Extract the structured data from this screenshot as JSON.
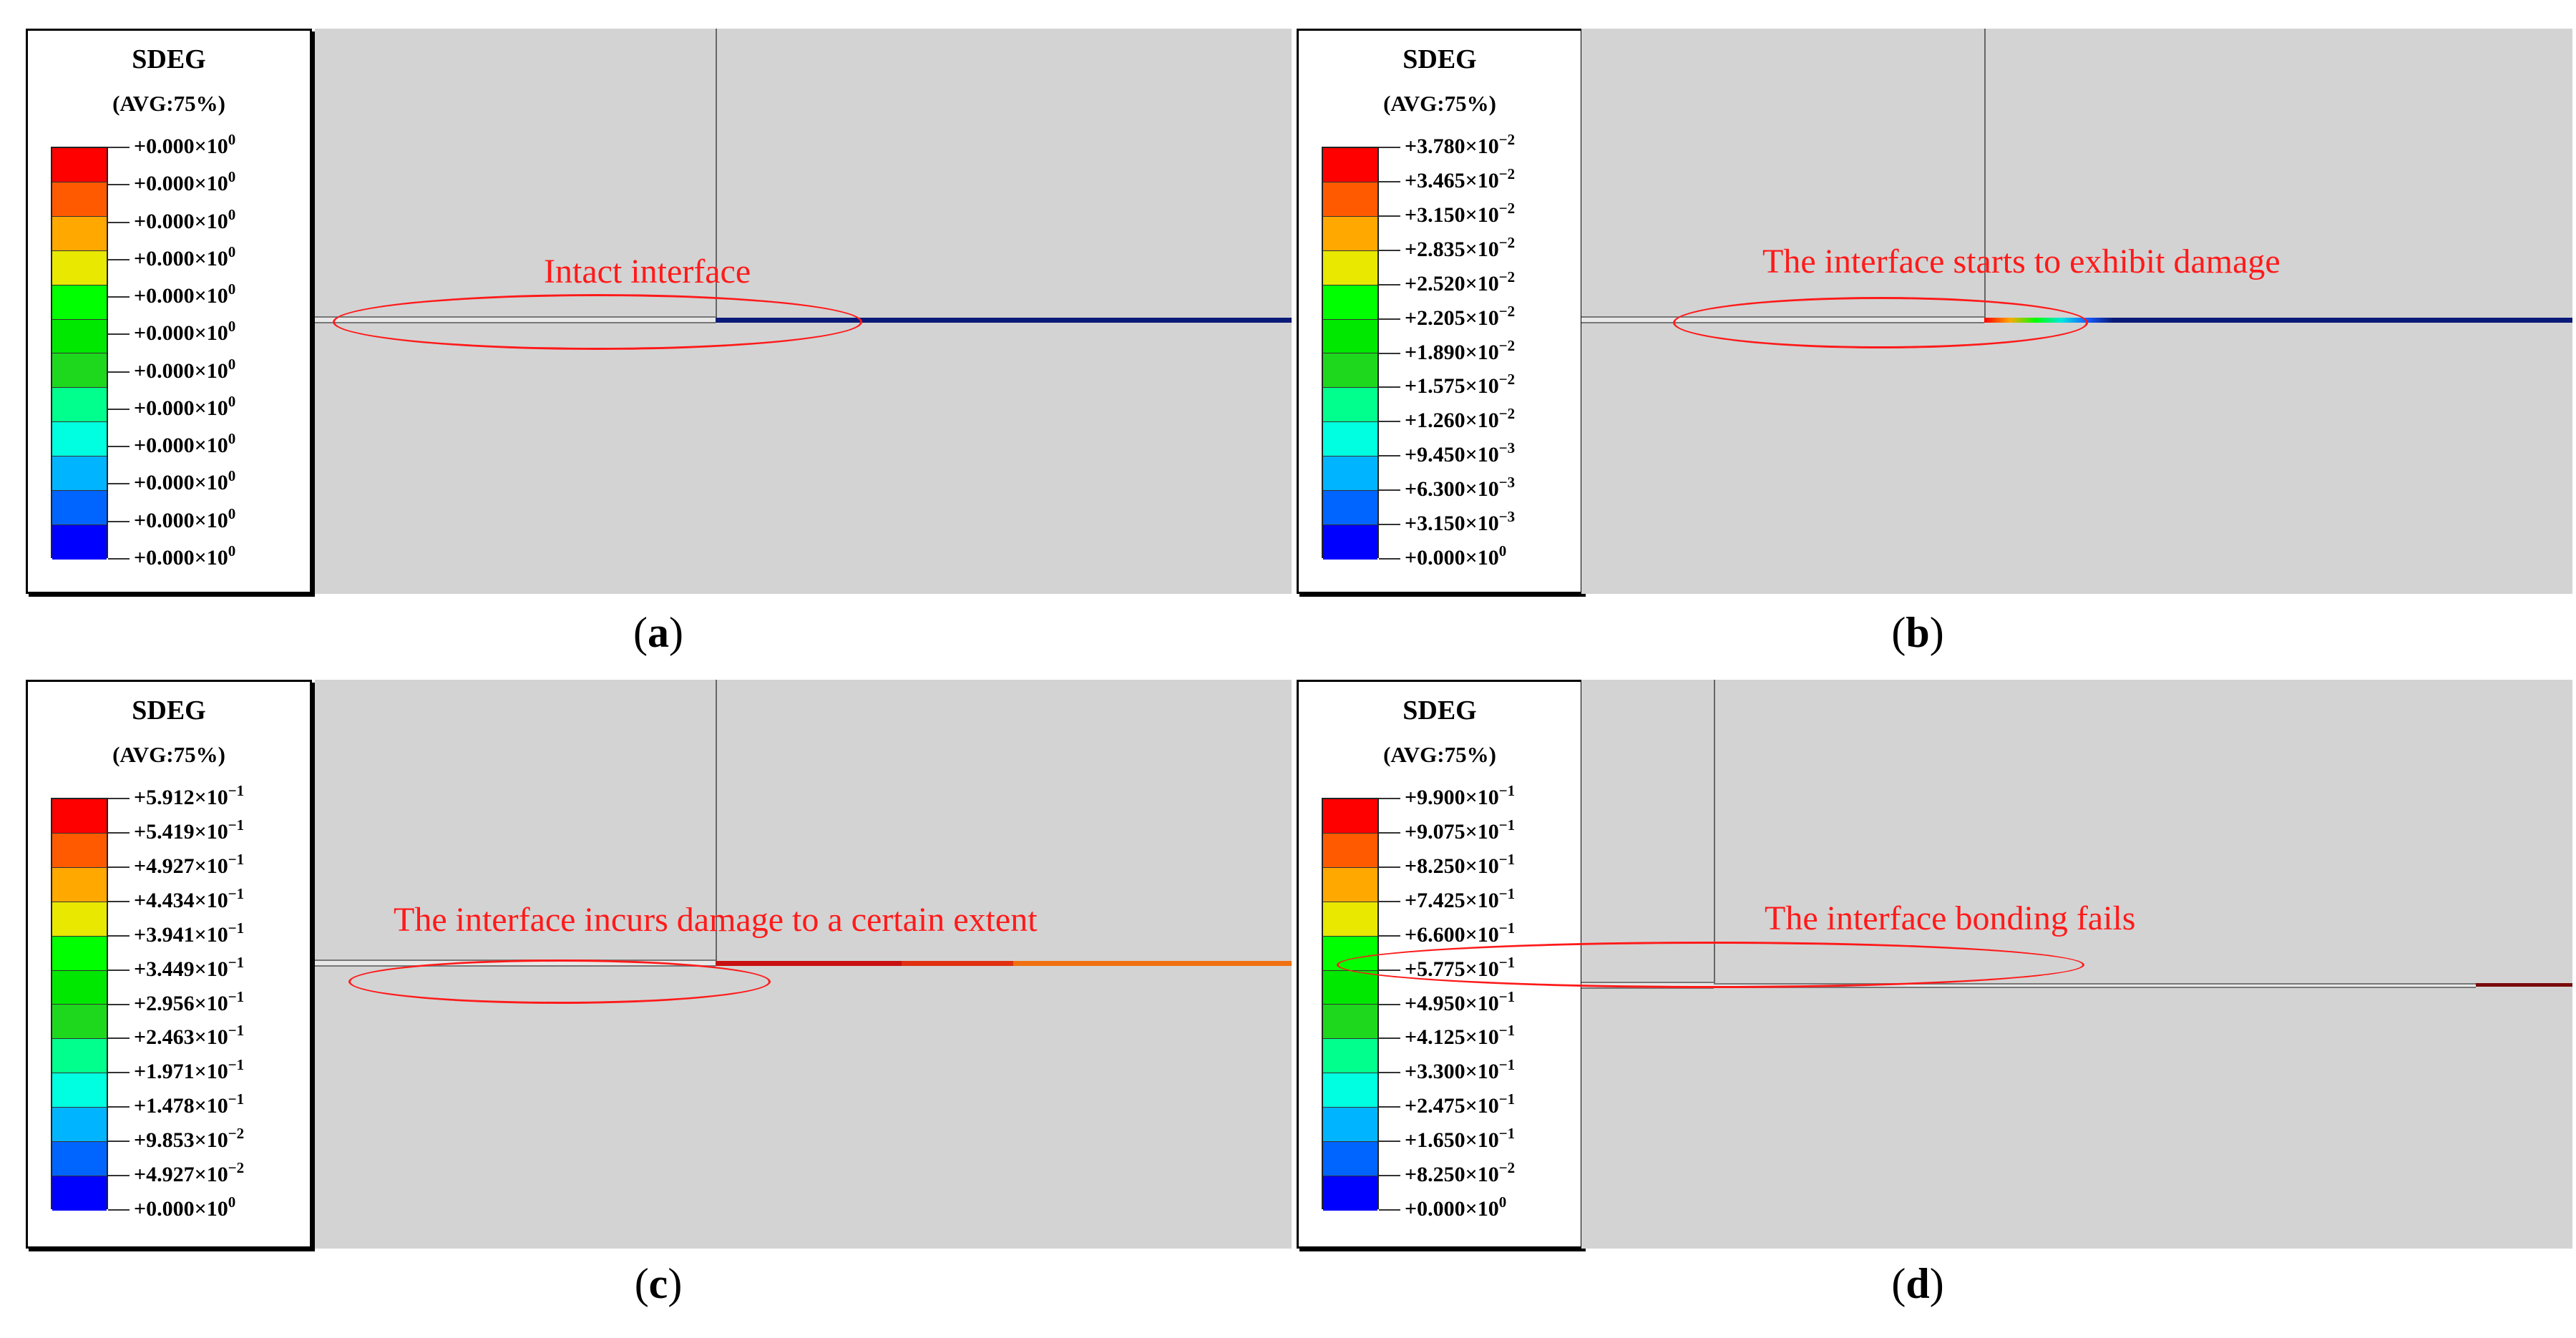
{
  "figure": {
    "panels": [
      {
        "id": "a",
        "legend": {
          "title": "SDEG",
          "subtitle": "(AVG:75%)",
          "labels": [
            "+0.000×10^0",
            "+0.000×10^0",
            "+0.000×10^0",
            "+0.000×10^0",
            "+0.000×10^0",
            "+0.000×10^0",
            "+0.000×10^0",
            "+0.000×10^0",
            "+0.000×10^0",
            "+0.000×10^0",
            "+0.000×10^0",
            "+0.000×10^0"
          ]
        },
        "annotation": "Intact interface",
        "caption_letter": "a",
        "damage_state": "intact"
      },
      {
        "id": "b",
        "legend": {
          "title": "SDEG",
          "subtitle": "(AVG:75%)",
          "labels": [
            "+3.780×10^-2",
            "+3.465×10^-2",
            "+3.150×10^-2",
            "+2.835×10^-2",
            "+2.520×10^-2",
            "+2.205×10^-2",
            "+1.890×10^-2",
            "+1.575×10^-2",
            "+1.260×10^-2",
            "+9.450×10^-3",
            "+6.300×10^-3",
            "+3.150×10^-3",
            "+0.000×10^0"
          ]
        },
        "annotation": "The interface starts to exhibit damage",
        "caption_letter": "b",
        "damage_state": "initiating"
      },
      {
        "id": "c",
        "legend": {
          "title": "SDEG",
          "subtitle": "(AVG:75%)",
          "labels": [
            "+5.912×10^-1",
            "+5.419×10^-1",
            "+4.927×10^-1",
            "+4.434×10^-1",
            "+3.941×10^-1",
            "+3.449×10^-1",
            "+2.956×10^-1",
            "+2.463×10^-1",
            "+1.971×10^-1",
            "+1.478×10^-1",
            "+9.853×10^-2",
            "+4.927×10^-2",
            "+0.000×10^0"
          ]
        },
        "annotation": "The interface incurs damage to a certain extent",
        "caption_letter": "c",
        "damage_state": "partial"
      },
      {
        "id": "d",
        "legend": {
          "title": "SDEG",
          "subtitle": "(AVG:75%)",
          "labels": [
            "+9.900×10^-1",
            "+9.075×10^-1",
            "+8.250×10^-1",
            "+7.425×10^-1",
            "+6.600×10^-1",
            "+5.775×10^-1",
            "+4.950×10^-1",
            "+4.125×10^-1",
            "+3.300×10^-1",
            "+2.475×10^-1",
            "+1.650×10^-1",
            "+8.250×10^-2",
            "+0.000×10^0"
          ]
        },
        "annotation": "The interface bonding fails",
        "caption_letter": "d",
        "damage_state": "failed"
      }
    ],
    "contour_colors": [
      "#ff0000",
      "#ff5a00",
      "#ffa800",
      "#e8e800",
      "#00ff00",
      "#00e800",
      "#1ed81e",
      "#00ff8c",
      "#00ffe0",
      "#00b4ff",
      "#0064ff",
      "#0000ff"
    ],
    "colors": {
      "annotation": "#ff1a1a",
      "viewport_bg": "#d3d3d3",
      "interface_undamaged": "#0a1a78"
    }
  }
}
